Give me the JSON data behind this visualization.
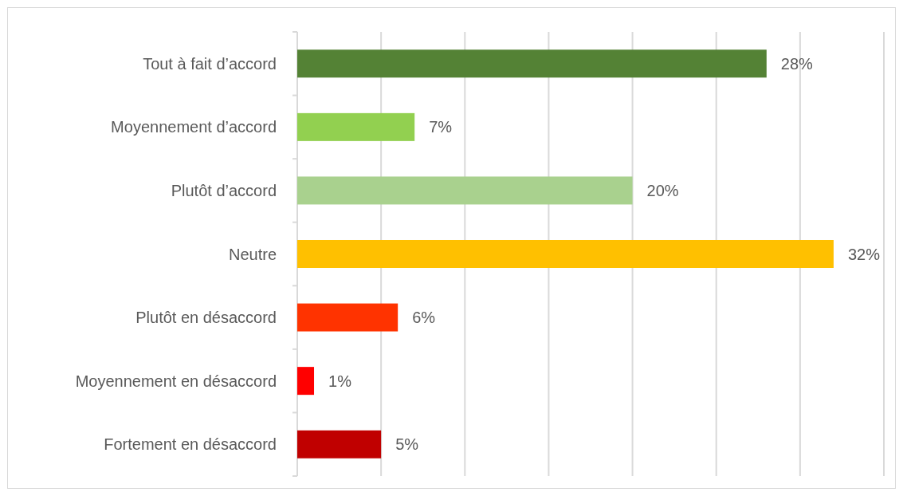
{
  "chart_data": {
    "type": "bar",
    "orientation": "horizontal",
    "categories": [
      "Tout à fait d’accord",
      "Moyennement d’accord",
      "Plutôt d’accord",
      "Neutre",
      "Plutôt en désaccord",
      "Moyennement en désaccord",
      "Fortement en désaccord"
    ],
    "values": [
      28,
      7,
      20,
      32,
      6,
      1,
      5
    ],
    "colors": [
      "#548235",
      "#92d050",
      "#a9d18e",
      "#ffc000",
      "#ff3300",
      "#ff0000",
      "#c00000"
    ],
    "value_labels": [
      "28%",
      "7%",
      "20%",
      "32%",
      "6%",
      "1%",
      "5%"
    ],
    "xlim": [
      0,
      35
    ],
    "xticks": [
      {
        "value": 0,
        "label": null
      },
      {
        "value": 5,
        "label": null
      },
      {
        "value": 10,
        "label": null
      },
      {
        "value": 15,
        "label": null
      },
      {
        "value": 20,
        "label": null
      },
      {
        "value": 25,
        "label": null
      },
      {
        "value": 30,
        "label": null
      },
      {
        "value": 35,
        "label": null
      }
    ],
    "grid": "x",
    "tick_labels": "y"
  }
}
